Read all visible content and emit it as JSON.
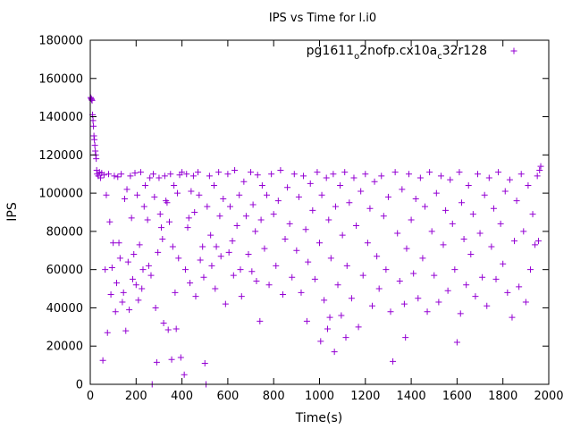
{
  "chart_data": {
    "type": "scatter",
    "title": "IPS vs Time for l.i0",
    "xlabel": "Time(s)",
    "ylabel": "IPS",
    "xlim": [
      0,
      2000
    ],
    "ylim": [
      0,
      180000
    ],
    "xticks": [
      0,
      200,
      400,
      600,
      800,
      1000,
      1200,
      1400,
      1600,
      1800,
      2000
    ],
    "yticks": [
      0,
      20000,
      40000,
      60000,
      80000,
      100000,
      120000,
      140000,
      160000,
      180000
    ],
    "xtick_labels": [
      "0",
      "200",
      "400",
      "600",
      "800",
      "1000",
      "1200",
      "1400",
      "1600",
      "1800",
      "2000"
    ],
    "ytick_labels": [
      "0",
      "20000",
      "40000",
      "60000",
      "80000",
      "100000",
      "120000",
      "140000",
      "160000",
      "180000"
    ],
    "grid": false,
    "legend_position": "top-right",
    "marker": "+",
    "series": [
      {
        "name": "pg1611_o2nofp.cx10a_c32r128",
        "name_parts": [
          "pg1611",
          "o",
          "2nofp.cx10a",
          "c",
          "32r128"
        ],
        "color": "#9400D3",
        "points": [
          [
            2,
            150000
          ],
          [
            4,
            149500
          ],
          [
            6,
            149000
          ],
          [
            8,
            148500
          ],
          [
            10,
            141000
          ],
          [
            12,
            138000
          ],
          [
            14,
            135000
          ],
          [
            16,
            130000
          ],
          [
            18,
            128000
          ],
          [
            20,
            125000
          ],
          [
            22,
            122000
          ],
          [
            24,
            120000
          ],
          [
            26,
            118000
          ],
          [
            28,
            112000
          ],
          [
            30,
            110000
          ],
          [
            35,
            109000
          ],
          [
            40,
            111000
          ],
          [
            45,
            108000
          ],
          [
            50,
            110500
          ],
          [
            55,
            12500
          ],
          [
            60,
            109500
          ],
          [
            65,
            60000
          ],
          [
            70,
            99000
          ],
          [
            75,
            27000
          ],
          [
            80,
            110000
          ],
          [
            85,
            85000
          ],
          [
            90,
            47000
          ],
          [
            95,
            61000
          ],
          [
            100,
            74000
          ],
          [
            105,
            109000
          ],
          [
            110,
            38000
          ],
          [
            115,
            53000
          ],
          [
            120,
            108500
          ],
          [
            125,
            74000
          ],
          [
            130,
            66000
          ],
          [
            135,
            110000
          ],
          [
            140,
            43000
          ],
          [
            145,
            48000
          ],
          [
            150,
            97000
          ],
          [
            155,
            28000
          ],
          [
            160,
            102000
          ],
          [
            165,
            64000
          ],
          [
            170,
            39000
          ],
          [
            175,
            109000
          ],
          [
            180,
            87000
          ],
          [
            185,
            55000
          ],
          [
            190,
            68000
          ],
          [
            195,
            110500
          ],
          [
            200,
            52000
          ],
          [
            205,
            99000
          ],
          [
            210,
            44000
          ],
          [
            215,
            73000
          ],
          [
            220,
            111000
          ],
          [
            225,
            50000
          ],
          [
            230,
            60000
          ],
          [
            235,
            93000
          ],
          [
            240,
            104000
          ],
          [
            250,
            86000
          ],
          [
            255,
            62000
          ],
          [
            260,
            108000
          ],
          [
            265,
            57000
          ],
          [
            270,
            0
          ],
          [
            275,
            110000
          ],
          [
            280,
            98000
          ],
          [
            285,
            40000
          ],
          [
            290,
            11500
          ],
          [
            295,
            69000
          ],
          [
            300,
            108000
          ],
          [
            305,
            89000
          ],
          [
            310,
            82000
          ],
          [
            315,
            76000
          ],
          [
            320,
            32000
          ],
          [
            325,
            109000
          ],
          [
            330,
            96000
          ],
          [
            335,
            95000
          ],
          [
            340,
            28500
          ],
          [
            345,
            85000
          ],
          [
            350,
            110000
          ],
          [
            355,
            13000
          ],
          [
            360,
            72000
          ],
          [
            365,
            104000
          ],
          [
            370,
            48000
          ],
          [
            375,
            29000
          ],
          [
            380,
            100000
          ],
          [
            385,
            66000
          ],
          [
            390,
            109500
          ],
          [
            395,
            14000
          ],
          [
            400,
            111000
          ],
          [
            410,
            5000
          ],
          [
            415,
            60000
          ],
          [
            420,
            110000
          ],
          [
            425,
            82000
          ],
          [
            430,
            87000
          ],
          [
            435,
            53000
          ],
          [
            440,
            101000
          ],
          [
            450,
            109000
          ],
          [
            455,
            90000
          ],
          [
            460,
            46000
          ],
          [
            470,
            111000
          ],
          [
            475,
            99000
          ],
          [
            480,
            65000
          ],
          [
            490,
            72000
          ],
          [
            495,
            56000
          ],
          [
            500,
            11000
          ],
          [
            505,
            0
          ],
          [
            510,
            93000
          ],
          [
            520,
            109000
          ],
          [
            525,
            78000
          ],
          [
            530,
            62000
          ],
          [
            540,
            104000
          ],
          [
            545,
            50000
          ],
          [
            550,
            72000
          ],
          [
            560,
            111000
          ],
          [
            565,
            88000
          ],
          [
            570,
            67000
          ],
          [
            580,
            97000
          ],
          [
            590,
            42000
          ],
          [
            600,
            110000
          ],
          [
            605,
            69000
          ],
          [
            610,
            93000
          ],
          [
            620,
            75000
          ],
          [
            625,
            57000
          ],
          [
            630,
            112000
          ],
          [
            640,
            83000
          ],
          [
            650,
            99000
          ],
          [
            655,
            60000
          ],
          [
            660,
            46000
          ],
          [
            670,
            106000
          ],
          [
            680,
            88000
          ],
          [
            690,
            68000
          ],
          [
            700,
            111000
          ],
          [
            705,
            59000
          ],
          [
            710,
            94000
          ],
          [
            720,
            80000
          ],
          [
            725,
            54000
          ],
          [
            730,
            109500
          ],
          [
            740,
            33000
          ],
          [
            745,
            86000
          ],
          [
            750,
            104000
          ],
          [
            760,
            71000
          ],
          [
            770,
            99000
          ],
          [
            780,
            52000
          ],
          [
            790,
            110000
          ],
          [
            800,
            89000
          ],
          [
            810,
            62000
          ],
          [
            820,
            96000
          ],
          [
            830,
            112000
          ],
          [
            840,
            47000
          ],
          [
            850,
            76000
          ],
          [
            860,
            103000
          ],
          [
            870,
            84000
          ],
          [
            880,
            56000
          ],
          [
            890,
            110000
          ],
          [
            900,
            70000
          ],
          [
            910,
            98000
          ],
          [
            920,
            48000
          ],
          [
            930,
            109000
          ],
          [
            940,
            81000
          ],
          [
            945,
            33000
          ],
          [
            950,
            64000
          ],
          [
            960,
            105000
          ],
          [
            970,
            91000
          ],
          [
            980,
            55000
          ],
          [
            990,
            111000
          ],
          [
            1000,
            74000
          ],
          [
            1005,
            22500
          ],
          [
            1010,
            99000
          ],
          [
            1020,
            44000
          ],
          [
            1030,
            108000
          ],
          [
            1035,
            29000
          ],
          [
            1040,
            86000
          ],
          [
            1045,
            35000
          ],
          [
            1050,
            66000
          ],
          [
            1060,
            110000
          ],
          [
            1065,
            17000
          ],
          [
            1070,
            93000
          ],
          [
            1080,
            52000
          ],
          [
            1090,
            104000
          ],
          [
            1095,
            36000
          ],
          [
            1100,
            78000
          ],
          [
            1110,
            111000
          ],
          [
            1115,
            24500
          ],
          [
            1120,
            62000
          ],
          [
            1130,
            95000
          ],
          [
            1140,
            45000
          ],
          [
            1150,
            108000
          ],
          [
            1160,
            83000
          ],
          [
            1170,
            30000
          ],
          [
            1180,
            101000
          ],
          [
            1190,
            57000
          ],
          [
            1200,
            110000
          ],
          [
            1210,
            74000
          ],
          [
            1220,
            92000
          ],
          [
            1230,
            41000
          ],
          [
            1240,
            106000
          ],
          [
            1250,
            67000
          ],
          [
            1260,
            50000
          ],
          [
            1270,
            109000
          ],
          [
            1280,
            88000
          ],
          [
            1290,
            60000
          ],
          [
            1300,
            98000
          ],
          [
            1310,
            38000
          ],
          [
            1320,
            12000
          ],
          [
            1330,
            111000
          ],
          [
            1340,
            79000
          ],
          [
            1350,
            54000
          ],
          [
            1360,
            102000
          ],
          [
            1370,
            42000
          ],
          [
            1375,
            24500
          ],
          [
            1380,
            71000
          ],
          [
            1390,
            110000
          ],
          [
            1400,
            86000
          ],
          [
            1410,
            58000
          ],
          [
            1420,
            97000
          ],
          [
            1430,
            45000
          ],
          [
            1440,
            108000
          ],
          [
            1450,
            66000
          ],
          [
            1460,
            93000
          ],
          [
            1470,
            38000
          ],
          [
            1480,
            111000
          ],
          [
            1490,
            80000
          ],
          [
            1500,
            57000
          ],
          [
            1510,
            100000
          ],
          [
            1520,
            43000
          ],
          [
            1530,
            109000
          ],
          [
            1540,
            73000
          ],
          [
            1550,
            91000
          ],
          [
            1560,
            49000
          ],
          [
            1570,
            107000
          ],
          [
            1580,
            84000
          ],
          [
            1590,
            60000
          ],
          [
            1600,
            22000
          ],
          [
            1610,
            111000
          ],
          [
            1615,
            37000
          ],
          [
            1620,
            95000
          ],
          [
            1630,
            76000
          ],
          [
            1640,
            52000
          ],
          [
            1650,
            104000
          ],
          [
            1660,
            68000
          ],
          [
            1670,
            89000
          ],
          [
            1680,
            46000
          ],
          [
            1690,
            110000
          ],
          [
            1700,
            79000
          ],
          [
            1710,
            56000
          ],
          [
            1720,
            99000
          ],
          [
            1730,
            41000
          ],
          [
            1740,
            108000
          ],
          [
            1750,
            72000
          ],
          [
            1760,
            92000
          ],
          [
            1770,
            55000
          ],
          [
            1780,
            111000
          ],
          [
            1790,
            84000
          ],
          [
            1800,
            63000
          ],
          [
            1810,
            101000
          ],
          [
            1820,
            48000
          ],
          [
            1830,
            107000
          ],
          [
            1840,
            35000
          ],
          [
            1850,
            75000
          ],
          [
            1860,
            96000
          ],
          [
            1870,
            51000
          ],
          [
            1880,
            110000
          ],
          [
            1890,
            80000
          ],
          [
            1900,
            43000
          ],
          [
            1910,
            104000
          ],
          [
            1920,
            60000
          ],
          [
            1930,
            89000
          ],
          [
            1940,
            73000
          ],
          [
            1950,
            109000
          ],
          [
            1955,
            75000
          ],
          [
            1960,
            112000
          ],
          [
            1965,
            114000
          ]
        ]
      }
    ]
  }
}
